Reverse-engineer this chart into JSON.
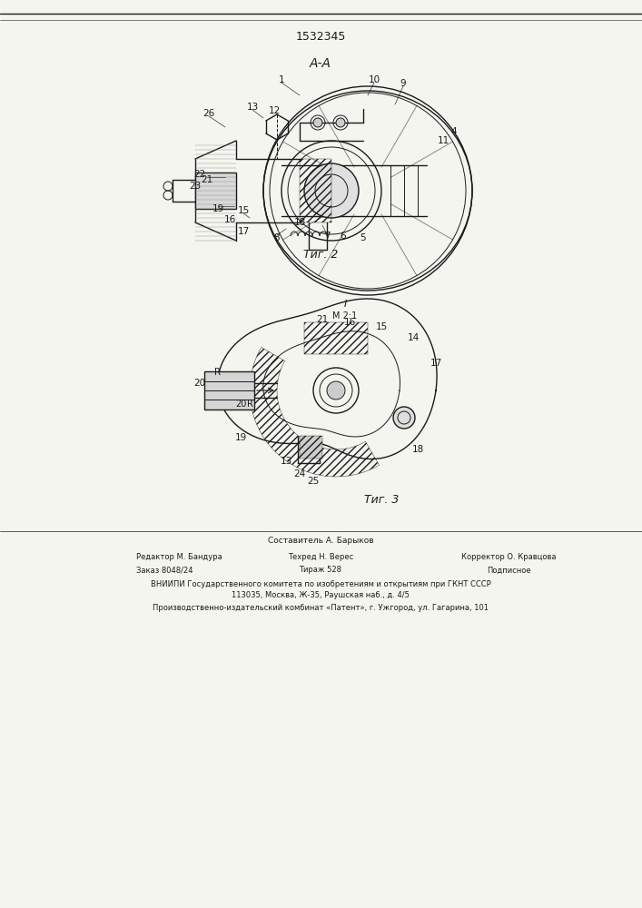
{
  "patent_number": "1532345",
  "fig2_label": "A-A",
  "fig2_caption": "Τиг. 2",
  "fig3_caption": "Τиг. 3",
  "fig3_scale": "I\nM 2:1",
  "footer_line1": "Составитель А. Барыков",
  "footer_line2_col1": "Редактор М. Бандура",
  "footer_line2_col2": "Техред Н. Верес",
  "footer_line2_col3": "Корректор О. Кравцова",
  "footer_line3_col1": "Заказ 8048/24",
  "footer_line3_col2": "Тираж 528",
  "footer_line3_col3": "Подписное",
  "footer_line4": "ВНИИПИ Государственного комитета по изобретениям и открытиям при ГКНТ СССР",
  "footer_line5": "113035, Москва, Ж-35, Раушская наб., д. 4/5",
  "footer_line6": "Производственно-издательский комбинат «Патент», г. Ужгород, ул. Гагарина, 101",
  "bg_color": "#f5f5f0",
  "line_color": "#1a1a1a",
  "hatch_color": "#1a1a1a"
}
